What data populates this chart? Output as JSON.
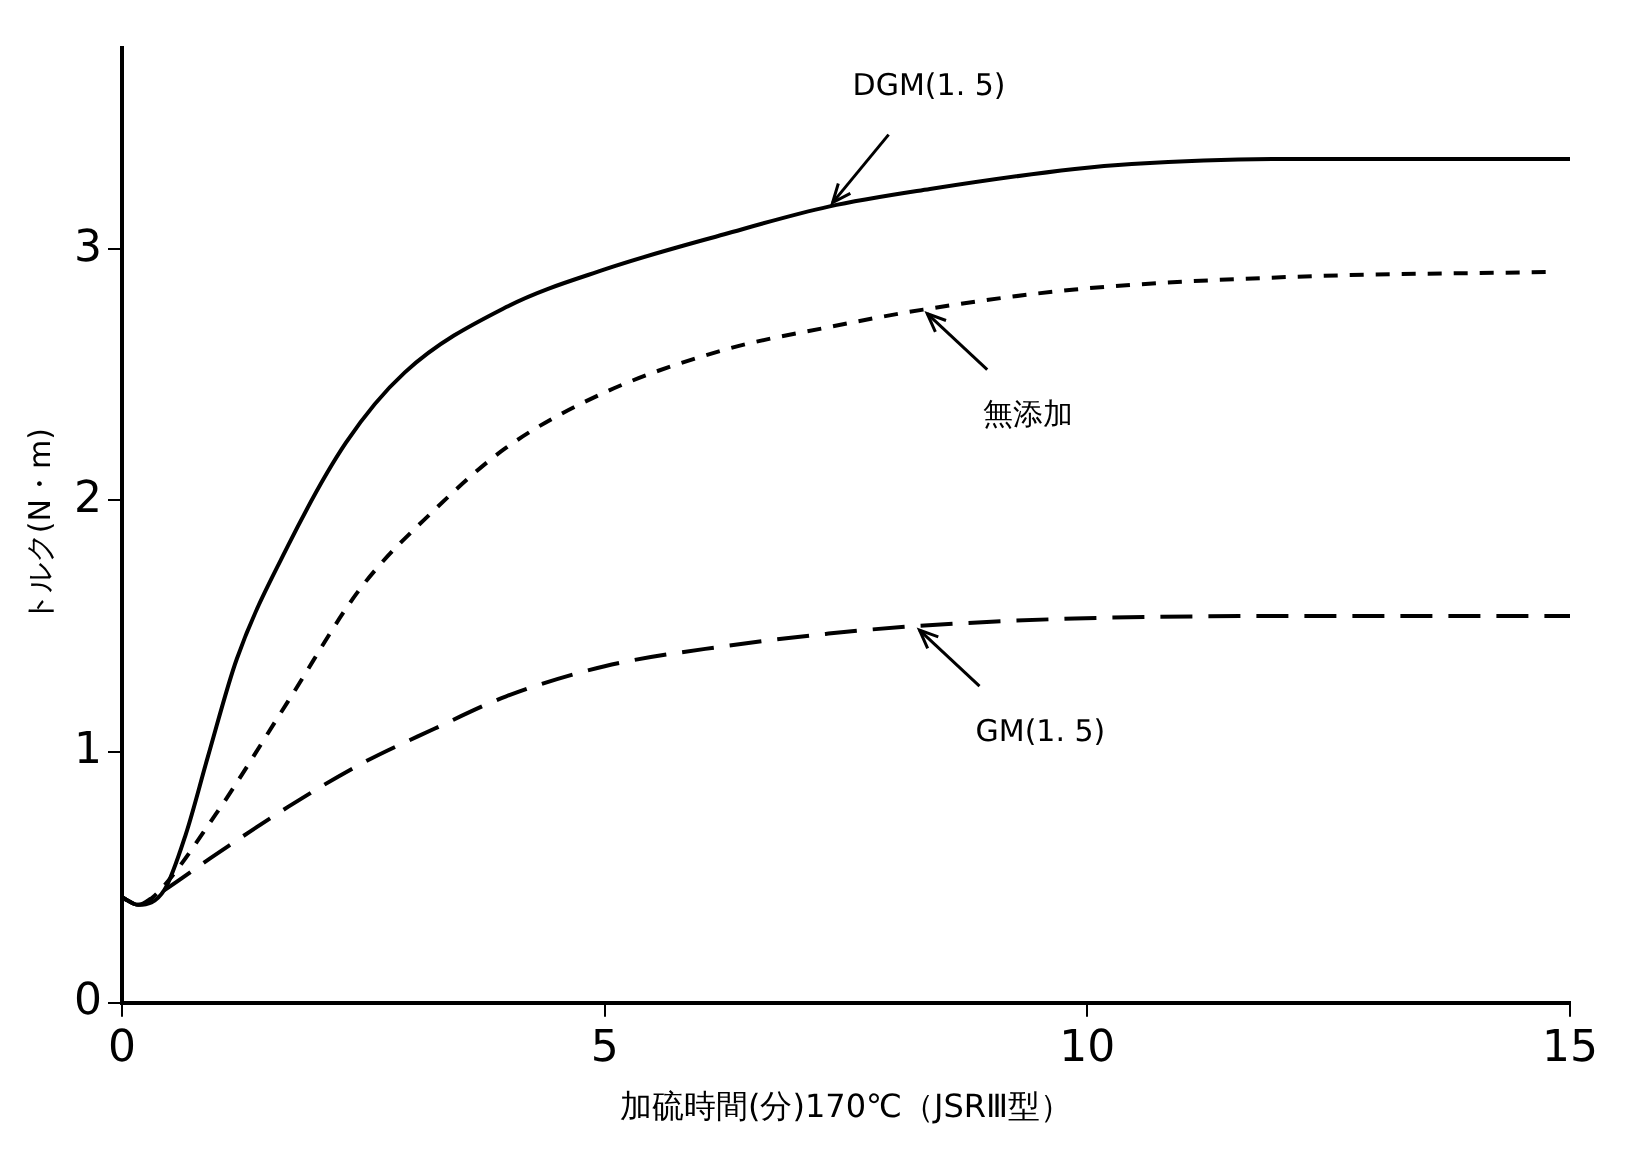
{
  "chart_data": {
    "type": "line",
    "xlabel": "加硫時間(分)170℃（JSRⅢ型）",
    "ylabel": "トルク(N・m)",
    "xlim": [
      0,
      15
    ],
    "xticks": [
      0,
      5,
      10,
      15
    ],
    "ylim": [
      0,
      3.8
    ],
    "yticks": [
      0,
      1,
      2,
      3
    ],
    "grid": false,
    "legend": false,
    "marker": "none",
    "series": [
      {
        "color": "#000000",
        "line_style": "solid",
        "x": [
          0,
          0.17,
          0.44,
          0.66,
          0.89,
          1.19,
          1.72,
          2.32,
          2.93,
          3.98,
          5.0,
          6.24,
          7.32,
          8.37,
          9.87,
          10.46,
          12.1,
          15
        ],
        "values": [
          0.42,
          0.39,
          0.45,
          0.67,
          0.98,
          1.37,
          1.82,
          2.23,
          2.51,
          2.77,
          2.92,
          3.06,
          3.17,
          3.24,
          3.32,
          3.34,
          3.36,
          3.36
        ]
      },
      {
        "color": "#000000",
        "line_style": "dashed",
        "x": [
          0,
          0.17,
          0.32,
          0.97,
          1.72,
          2.47,
          3.23,
          3.98,
          5.0,
          6.24,
          7.32,
          8.3,
          9.87,
          12.1,
          14.8
        ],
        "values": [
          0.42,
          0.39,
          0.42,
          0.75,
          1.2,
          1.65,
          1.96,
          2.21,
          2.43,
          2.6,
          2.69,
          2.76,
          2.84,
          2.89,
          2.91
        ]
      },
      {
        "color": "#000000",
        "line_style": "dashed",
        "x": [
          0,
          0.17,
          0.32,
          0.97,
          1.72,
          2.47,
          3.23,
          3.98,
          5.0,
          6.24,
          7.32,
          8.22,
          9.87,
          12.1,
          15
        ],
        "values": [
          0.42,
          0.39,
          0.42,
          0.59,
          0.78,
          0.95,
          1.09,
          1.22,
          1.34,
          1.42,
          1.47,
          1.5,
          1.53,
          1.54,
          1.54
        ]
      }
    ],
    "annotations": [
      {
        "text": "DGM(1. 5)",
        "x": 7.32,
        "y": 3.17
      },
      {
        "text": "無添加",
        "x": 8.3,
        "y": 2.76
      },
      {
        "text": "GM(1. 5)",
        "x": 8.22,
        "y": 1.5
      }
    ]
  }
}
